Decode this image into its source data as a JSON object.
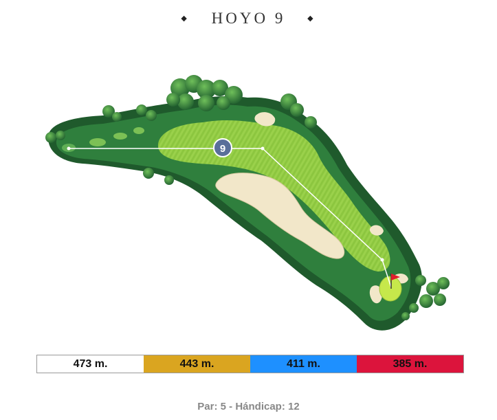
{
  "hole": {
    "title": "HOYO 9",
    "number_badge": "9",
    "left_ornament": "◆",
    "right_ornament": "◆"
  },
  "tees": [
    {
      "distance": "473 m.",
      "color": "#ffffff"
    },
    {
      "distance": "443 m.",
      "color": "#daa520"
    },
    {
      "distance": "411 m.",
      "color": "#1e90ff"
    },
    {
      "distance": "385 m.",
      "color": "#dc143c"
    }
  ],
  "info": {
    "summary": "Par: 5 - Hándicap: 12"
  },
  "colors": {
    "rough_dark": "#1f5e2e",
    "rough": "#2e7d3c",
    "fairway": "#8bc34a",
    "fairway_light": "#a5d65a",
    "sand": "#f1e6c8",
    "green": "#c5e84a",
    "flag": "#e01f2d",
    "badge": "#5a6f9a",
    "trees": "#3f8f3a"
  }
}
